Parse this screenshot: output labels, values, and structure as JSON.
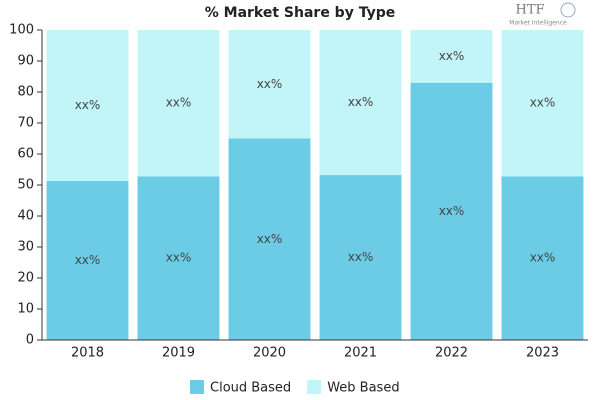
{
  "chart_data": {
    "type": "stacked_bar",
    "title": "% Market Share by Type",
    "logo": {
      "text": "HTF",
      "subtitle": "Market Intelligence"
    },
    "categories": [
      "2018",
      "2019",
      "2020",
      "2021",
      "2022",
      "2023"
    ],
    "series": [
      {
        "name": "Cloud Based",
        "color": "#6ccce6",
        "values": [
          51.3,
          52.8,
          65,
          53.2,
          83,
          52.8
        ],
        "value_labels": [
          "xx%",
          "xx%",
          "xx%",
          "xx%",
          "xx%",
          "xx%"
        ]
      },
      {
        "name": "Web Based",
        "color": "#c2f5f7",
        "values": [
          48.7,
          47.2,
          35,
          46.8,
          17,
          47.2
        ],
        "value_labels": [
          "xx%",
          "xx%",
          "xx%",
          "xx%",
          "xx%",
          "xx%"
        ]
      }
    ],
    "ylim": [
      0,
      100
    ],
    "yticks": [
      0,
      10,
      20,
      30,
      40,
      50,
      60,
      70,
      80,
      90,
      100
    ],
    "grid": false
  }
}
